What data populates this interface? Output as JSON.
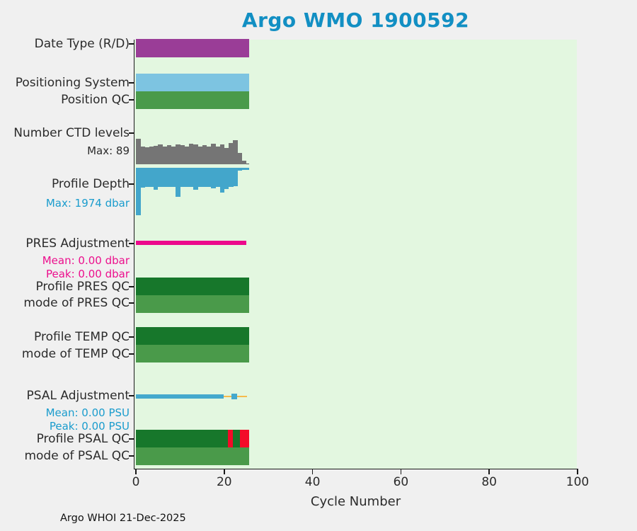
{
  "title": "Argo WMO 1900592",
  "footer": "Argo WHOI 21-Dec-2025",
  "colors": {
    "page_bg": "#f0f0f0",
    "plot_bg": "#e3f7e0",
    "title": "#128fc3",
    "axis": "#1a1a1a",
    "text_dark": "#2b2b2b",
    "teal_label": "#1a9ccd",
    "magenta_label": "#ec0f8d"
  },
  "chart_data": {
    "type": "bar",
    "title": "Argo WMO 1900592",
    "xlabel": "Cycle Number",
    "xlim": [
      0,
      100
    ],
    "x_ticks": [
      0,
      20,
      40,
      60,
      80,
      100
    ],
    "grid": false,
    "legend": "none",
    "n_cycles": 26,
    "rows": [
      {
        "id": "date_type",
        "label": "Date Type (R/D)",
        "kind": "solid-bar",
        "color": "#9a3d97",
        "extent": [
          0,
          25.6
        ]
      },
      {
        "id": "positioning_system",
        "label": "Positioning System",
        "kind": "solid-bar",
        "color": "#7dc4e1",
        "extent": [
          0,
          25.6
        ]
      },
      {
        "id": "position_qc",
        "label": "Position QC",
        "kind": "solid-bar",
        "color": "#4a9a4a",
        "extent": [
          0,
          25.6
        ]
      },
      {
        "id": "ctd_levels",
        "label": "Number CTD levels",
        "sublabels": [
          {
            "text": "Max: 89",
            "color": "#2b2b2b"
          }
        ],
        "kind": "histogram-up",
        "color": "#757575",
        "baseline_color": "#555555",
        "max": 89,
        "line_extent": [
          0,
          25.6
        ],
        "values": [
          89,
          62,
          60,
          61,
          64,
          70,
          62,
          66,
          61,
          70,
          67,
          61,
          72,
          69,
          63,
          66,
          63,
          72,
          61,
          68,
          58,
          74,
          84,
          40,
          12,
          0
        ]
      },
      {
        "id": "profile_depth",
        "label": "Profile Depth",
        "sublabels": [
          {
            "text": "Max: 1974 dbar",
            "color": "#1a9ccd"
          }
        ],
        "kind": "histogram-down",
        "color": "#43a6cb",
        "max": 1974,
        "line_extent": [
          0,
          25.6
        ],
        "values": [
          1974,
          820,
          790,
          800,
          915,
          800,
          790,
          810,
          795,
          1210,
          805,
          790,
          800,
          900,
          795,
          805,
          790,
          855,
          800,
          1030,
          870,
          805,
          760,
          120,
          40,
          0
        ]
      },
      {
        "id": "pres_adjustment",
        "label": "PRES Adjustment",
        "sublabels": [
          {
            "text": "Mean: 0.00 dbar",
            "color": "#ec0f8d"
          },
          {
            "text": "Peak: 0.00 dbar",
            "color": "#ec0f8d"
          }
        ],
        "kind": "line",
        "segments": [
          {
            "range": [
              0,
              25.0
            ],
            "color": "#ec0a8c",
            "thickness": 6
          }
        ]
      },
      {
        "id": "profile_pres_qc",
        "label": "Profile PRES QC",
        "kind": "solid-bar",
        "color": "#17772b",
        "extent": [
          0,
          25.6
        ]
      },
      {
        "id": "mode_pres_qc",
        "label": "mode of PRES QC",
        "kind": "solid-bar",
        "color": "#4a9a4a",
        "extent": [
          0,
          25.6
        ]
      },
      {
        "id": "profile_temp_qc",
        "label": "Profile TEMP QC",
        "kind": "solid-bar",
        "color": "#17772b",
        "extent": [
          0,
          25.6
        ]
      },
      {
        "id": "mode_temp_qc",
        "label": "mode of TEMP QC",
        "kind": "solid-bar",
        "color": "#4a9a4a",
        "extent": [
          0,
          25.6
        ]
      },
      {
        "id": "psal_adjustment",
        "label": "PSAL Adjustment",
        "sublabels": [
          {
            "text": "Mean: 0.00 PSU",
            "color": "#1a9ccd"
          },
          {
            "text": "Peak: 0.00 PSU",
            "color": "#1a9ccd"
          }
        ],
        "kind": "line",
        "segments": [
          {
            "range": [
              0,
              19.9
            ],
            "color": "#45a9cd",
            "thickness": 6
          },
          {
            "range": [
              19.9,
              25.2
            ],
            "color": "#f6bb4d",
            "thickness": 2.5
          }
        ],
        "marker": {
          "x": 22.3,
          "color": "#45a9cd",
          "size": 8
        }
      },
      {
        "id": "profile_psal_qc",
        "label": "Profile PSAL QC",
        "kind": "segmented-bar",
        "color": "#17772b",
        "extent": [
          0,
          25.6
        ],
        "alt_color": "#f30b28",
        "alt_segments": [
          [
            20.8,
            21.9
          ],
          [
            23.6,
            25.6
          ]
        ]
      },
      {
        "id": "mode_psal_qc",
        "label": "mode of PSAL QC",
        "kind": "solid-bar",
        "color": "#4a9a4a",
        "extent": [
          0,
          25.6
        ]
      }
    ]
  }
}
